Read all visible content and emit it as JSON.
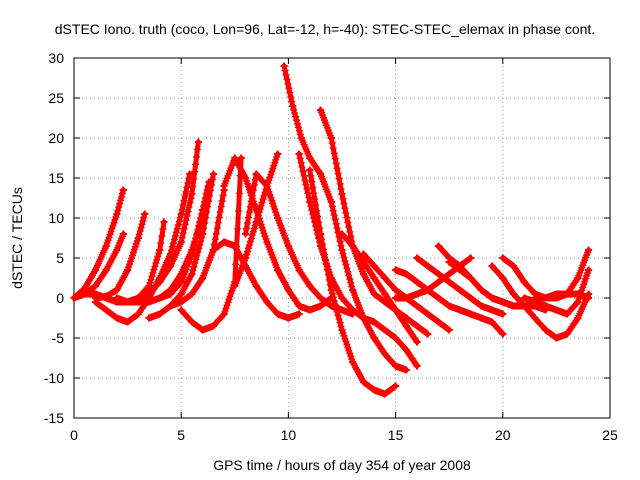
{
  "chart_data": {
    "type": "scatter",
    "title": "dSTEC Iono. truth (coco, Lon=96, Lat=-12, h=-40): STEC-STEC_elemax in phase cont.",
    "xlabel": "GPS time / hours of day 354 of year 2008",
    "ylabel": "dSTEC  / TECUs",
    "xlim": [
      0,
      25
    ],
    "ylim": [
      -15,
      30
    ],
    "xticks": [
      "0",
      "5",
      "10",
      "15",
      "20",
      "25"
    ],
    "yticks": [
      "-15",
      "-10",
      "-5",
      "0",
      "5",
      "10",
      "15",
      "20",
      "25",
      "30"
    ],
    "grid": true,
    "marker": "+",
    "color": "#ff0000",
    "series": [
      {
        "x": [
          0.0,
          0.5,
          1.0,
          1.5,
          2.0,
          2.3
        ],
        "y": [
          0,
          1.2,
          3.5,
          6.5,
          10.5,
          13.5
        ]
      },
      {
        "x": [
          0.5,
          1.0,
          1.5,
          2.0,
          2.3
        ],
        "y": [
          0.5,
          1.5,
          3.5,
          6.0,
          8.0
        ]
      },
      {
        "x": [
          1.0,
          1.5,
          2.0,
          2.5,
          3.0,
          3.3
        ],
        "y": [
          0,
          0.2,
          1.0,
          3.5,
          7.5,
          10.5
        ]
      },
      {
        "x": [
          0.0,
          0.5,
          1.0,
          1.5,
          2.0,
          2.5,
          3.0,
          3.5,
          4.0,
          4.2
        ],
        "y": [
          0,
          0.5,
          0.5,
          0,
          -0.5,
          -0.5,
          0,
          1.5,
          6.0,
          9.5
        ]
      },
      {
        "x": [
          1.0,
          1.5,
          2.0,
          2.5,
          3.0,
          3.5,
          4.0,
          4.5,
          5.0,
          5.4
        ],
        "y": [
          -0.5,
          -1.5,
          -2.5,
          -3.0,
          -2.0,
          0,
          2.5,
          5.5,
          10.5,
          15.5
        ]
      },
      {
        "x": [
          2.0,
          2.5,
          3.0,
          3.5,
          4.0,
          4.5,
          5.0,
          5.5,
          5.8
        ],
        "y": [
          0,
          -0.5,
          -0.5,
          0.5,
          2.0,
          4.0,
          7.0,
          13.0,
          19.5
        ]
      },
      {
        "x": [
          3.0,
          3.5,
          4.0,
          4.5,
          5.0,
          5.5,
          6.0,
          6.3
        ],
        "y": [
          -0.5,
          -0.5,
          0,
          1.0,
          3.0,
          6.0,
          10.0,
          14.5
        ]
      },
      {
        "x": [
          3.5,
          4.0,
          4.5,
          5.0,
          5.5,
          6.0,
          6.5
        ],
        "y": [
          -2.5,
          -2.0,
          -1.0,
          0.5,
          3.0,
          8.0,
          15.5
        ]
      },
      {
        "x": [
          4.0,
          4.5,
          5.0,
          5.5,
          6.0,
          6.3
        ],
        "y": [
          0,
          0.5,
          2.0,
          5.5,
          11.0,
          14.5
        ]
      },
      {
        "x": [
          4.5,
          5.0,
          5.5,
          6.0,
          6.5,
          7.0
        ],
        "y": [
          -1.0,
          -0.5,
          0.5,
          2.5,
          6.0,
          13.5
        ]
      },
      {
        "x": [
          5.0,
          5.5,
          6.0,
          6.5,
          7.0,
          7.5,
          7.8
        ],
        "y": [
          -1.5,
          -3.0,
          -4.0,
          -3.5,
          -2.0,
          2.0,
          17.5
        ]
      },
      {
        "x": [
          6.5,
          7.0,
          7.5,
          8.0,
          8.5,
          9.0,
          9.5,
          10.0,
          10.5
        ],
        "y": [
          6.0,
          7.0,
          6.5,
          4.0,
          1.5,
          -0.5,
          -2.0,
          -2.5,
          -2.0
        ]
      },
      {
        "x": [
          7.0,
          7.5,
          8.0,
          8.5,
          9.0,
          9.5,
          10.0,
          10.5,
          11.0,
          11.5,
          12.0
        ],
        "y": [
          14.0,
          17.5,
          15.0,
          11.0,
          7.0,
          3.5,
          1.0,
          -1.0,
          -1.5,
          -1.0,
          0
        ]
      },
      {
        "x": [
          7.5,
          8.0,
          8.5,
          9.0,
          9.5
        ],
        "y": [
          1.5,
          5.0,
          9.5,
          14.0,
          18.0
        ]
      },
      {
        "x": [
          8.0,
          8.5,
          9.0,
          9.5,
          10.0,
          10.5,
          11.0,
          11.5,
          12.0,
          12.5,
          13.0
        ],
        "y": [
          8.0,
          15.5,
          14.0,
          10.0,
          6.5,
          3.5,
          1.5,
          0,
          -1.0,
          -1.5,
          -2.0
        ]
      },
      {
        "x": [
          9.8,
          10.2,
          10.6,
          11.0,
          11.5,
          12.0,
          12.5,
          13.0,
          13.5,
          14.0,
          14.5,
          15.0,
          15.5
        ],
        "y": [
          29.0,
          24.0,
          20.0,
          17.5,
          15.5,
          12.0,
          6.0,
          1.0,
          -2.5,
          -5.0,
          -7.0,
          -8.5,
          -9.0
        ]
      },
      {
        "x": [
          10.5,
          11.0,
          11.5,
          12.0,
          12.5,
          13.0,
          13.5,
          14.0,
          14.5,
          15.0,
          15.5,
          16.0
        ],
        "y": [
          18.0,
          12.0,
          6.5,
          2.5,
          0,
          -1.5,
          -2.5,
          -3.0,
          -4.0,
          -5.0,
          -6.5,
          -8.5
        ]
      },
      {
        "x": [
          11.5,
          12.0,
          12.5,
          13.0,
          13.5,
          14.0,
          14.5,
          15.0,
          15.5,
          16.0,
          16.5
        ],
        "y": [
          23.5,
          20.0,
          13.0,
          6.5,
          3.0,
          0.5,
          -0.5,
          -1.5,
          -2.5,
          -3.5,
          -4.5
        ]
      },
      {
        "x": [
          11.0,
          11.5,
          12.0,
          12.5,
          13.0,
          13.5,
          14.0,
          14.5,
          15.0
        ],
        "y": [
          16.0,
          8.0,
          1.0,
          -4.0,
          -8.0,
          -10.5,
          -11.5,
          -12.0,
          -11.0
        ]
      },
      {
        "x": [
          12.5,
          13.0,
          13.5,
          14.0,
          14.5,
          15.0,
          15.5,
          16.0
        ],
        "y": [
          8.0,
          6.5,
          4.5,
          2.5,
          0.5,
          -1.5,
          -3.5,
          -5.5
        ]
      },
      {
        "x": [
          13.5,
          14.0,
          14.5,
          15.0,
          15.5,
          16.0,
          16.5,
          17.0,
          17.5
        ],
        "y": [
          5.5,
          4.0,
          2.5,
          1.0,
          0,
          -1.0,
          -2.0,
          -3.0,
          -4.0
        ]
      },
      {
        "x": [
          15.0,
          15.5,
          16.0,
          16.5,
          17.0,
          17.5,
          18.0,
          18.5,
          19.0,
          19.5,
          20.0
        ],
        "y": [
          3.5,
          3.0,
          2.0,
          1.0,
          0,
          -1.0,
          -1.5,
          -2.0,
          -2.5,
          -3.0,
          -4.5
        ]
      },
      {
        "x": [
          16.0,
          16.5,
          17.0,
          17.5,
          18.0,
          18.5,
          19.0,
          19.5,
          20.0
        ],
        "y": [
          5.0,
          4.0,
          3.0,
          2.0,
          1.0,
          0,
          -1.0,
          -1.5,
          -2.0
        ]
      },
      {
        "x": [
          15.0,
          15.5,
          16.0,
          16.5,
          17.0,
          17.5,
          18.0,
          18.5
        ],
        "y": [
          0,
          0,
          0.5,
          1.0,
          2.0,
          3.0,
          4.0,
          5.0
        ]
      },
      {
        "x": [
          17.0,
          17.5,
          18.0,
          18.5,
          19.0,
          19.5,
          20.0,
          20.5,
          21.0,
          21.5,
          22.0
        ],
        "y": [
          6.5,
          5.0,
          4.0,
          2.5,
          1.0,
          0,
          -0.5,
          -1.0,
          -1.0,
          -1.0,
          -1.5
        ]
      },
      {
        "x": [
          17.5,
          18.0,
          18.5,
          19.0,
          19.5,
          20.0,
          20.5,
          21.0
        ],
        "y": [
          4.5,
          3.5,
          2.5,
          1.0,
          0,
          -0.5,
          -1.0,
          -1.0
        ]
      },
      {
        "x": [
          19.5,
          20.0,
          20.5,
          21.0,
          21.5,
          22.0,
          22.5,
          23.0,
          23.5,
          24.0
        ],
        "y": [
          4.0,
          2.5,
          0.5,
          -1.0,
          -2.5,
          -4.0,
          -5.0,
          -4.5,
          -2.5,
          0.5
        ]
      },
      {
        "x": [
          20.0,
          20.5,
          21.0,
          21.5,
          22.0,
          22.5,
          23.0,
          23.5,
          24.0
        ],
        "y": [
          5.0,
          4.0,
          2.0,
          0.5,
          0,
          0,
          0.5,
          2.5,
          6.0
        ]
      },
      {
        "x": [
          21.0,
          21.5,
          22.0,
          22.5,
          23.0,
          23.5,
          24.0
        ],
        "y": [
          0,
          -0.5,
          -1.0,
          -1.5,
          -2.0,
          -0.5,
          3.5
        ]
      },
      {
        "x": [
          21.5,
          22.0,
          22.5,
          23.0,
          23.5,
          24.0
        ],
        "y": [
          0,
          0,
          0.5,
          0.5,
          0.5,
          0
        ]
      }
    ]
  }
}
